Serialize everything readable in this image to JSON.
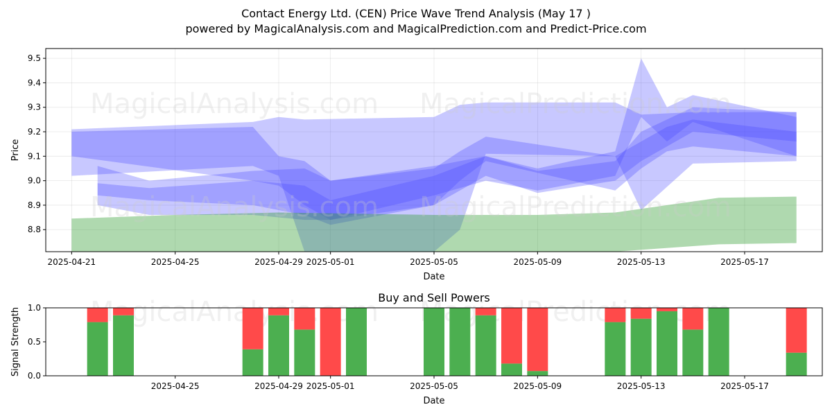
{
  "title": "Contact Energy Ltd. (CEN) Price Wave Trend Analysis (May 17 )",
  "subtitle": "powered by MagicalAnalysis.com and MagicalPrediction.com and Predict-Price.com",
  "watermarks": [
    "MagicalAnalysis.com",
    "MagicalPrediction.com"
  ],
  "chart_data": [
    {
      "type": "area",
      "title": "",
      "xlabel": "Date",
      "ylabel": "Price",
      "x_range": [
        "2025-04-20",
        "2025-05-20"
      ],
      "ylim": [
        8.71,
        9.54
      ],
      "x_ticks": [
        "2025-04-21",
        "2025-04-25",
        "2025-04-29",
        "2025-05-01",
        "2025-05-05",
        "2025-05-09",
        "2025-05-13",
        "2025-05-17"
      ],
      "y_ticks": [
        8.8,
        8.9,
        9.0,
        9.1,
        9.2,
        9.3,
        9.4,
        9.5
      ],
      "grid": true,
      "colors": {
        "wave": "#4a4aff",
        "green_band": "#2e9a2e"
      },
      "series": [
        {
          "kind": "wave-band",
          "x": [
            "2025-04-21",
            "2025-04-28",
            "2025-04-29",
            "2025-04-30",
            "2025-05-05",
            "2025-05-06",
            "2025-05-07",
            "2025-05-12",
            "2025-05-13",
            "2025-05-15",
            "2025-05-19"
          ],
          "upper": [
            9.21,
            9.24,
            9.26,
            9.25,
            9.26,
            9.31,
            9.32,
            9.32,
            9.27,
            9.28,
            9.28
          ],
          "lower": [
            9.02,
            9.06,
            9.02,
            8.71,
            8.71,
            8.8,
            9.11,
            9.1,
            8.88,
            9.07,
            9.08
          ]
        },
        {
          "kind": "wave-band",
          "x": [
            "2025-04-21",
            "2025-04-28",
            "2025-04-29",
            "2025-04-30",
            "2025-05-01",
            "2025-05-05",
            "2025-05-06",
            "2025-05-07",
            "2025-05-12",
            "2025-05-13",
            "2025-05-14",
            "2025-05-15",
            "2025-05-19"
          ],
          "upper": [
            9.2,
            9.22,
            9.1,
            9.08,
            9.0,
            9.05,
            9.12,
            9.18,
            9.1,
            9.16,
            9.22,
            9.25,
            9.2
          ],
          "lower": [
            9.1,
            9.0,
            8.98,
            8.9,
            8.84,
            8.9,
            9.0,
            9.08,
            8.96,
            9.05,
            9.12,
            9.14,
            9.1
          ]
        },
        {
          "kind": "wave-band",
          "x": [
            "2025-04-22",
            "2025-04-24",
            "2025-04-28",
            "2025-04-30",
            "2025-05-01",
            "2025-05-05",
            "2025-05-07",
            "2025-05-09",
            "2025-05-12",
            "2025-05-13",
            "2025-05-15",
            "2025-05-19"
          ],
          "upper": [
            9.06,
            9.0,
            9.04,
            9.05,
            9.0,
            9.06,
            9.1,
            9.04,
            9.08,
            9.2,
            9.3,
            9.28
          ],
          "lower": [
            8.94,
            8.92,
            8.9,
            8.86,
            8.82,
            8.9,
            9.02,
            8.95,
            9.0,
            9.08,
            9.2,
            9.16
          ]
        },
        {
          "kind": "wave-band",
          "x": [
            "2025-04-22",
            "2025-04-24",
            "2025-04-28",
            "2025-04-30",
            "2025-05-01",
            "2025-05-05",
            "2025-05-07",
            "2025-05-09",
            "2025-05-12",
            "2025-05-13",
            "2025-05-14",
            "2025-05-15",
            "2025-05-19"
          ],
          "upper": [
            8.99,
            8.97,
            9.0,
            8.98,
            8.92,
            9.02,
            9.1,
            9.05,
            9.12,
            9.5,
            9.3,
            9.35,
            9.26
          ],
          "lower": [
            8.9,
            8.86,
            8.86,
            8.84,
            8.84,
            8.94,
            9.0,
            8.96,
            9.02,
            9.26,
            9.16,
            9.24,
            9.1
          ]
        },
        {
          "kind": "green-band",
          "x": [
            "2025-04-21",
            "2025-04-25",
            "2025-04-29",
            "2025-05-05",
            "2025-05-09",
            "2025-05-12",
            "2025-05-16",
            "2025-05-19"
          ],
          "upper": [
            8.845,
            8.86,
            8.87,
            8.86,
            8.86,
            8.87,
            8.93,
            8.935
          ],
          "lower": [
            8.71,
            8.71,
            8.71,
            8.71,
            8.71,
            8.71,
            8.74,
            8.745
          ]
        }
      ]
    },
    {
      "type": "bar",
      "title": "Buy and Sell Powers",
      "xlabel": "Date",
      "ylabel": "Signal Strength",
      "ylim": [
        0,
        1.0
      ],
      "y_ticks": [
        "0.0",
        "0.5",
        "1.0"
      ],
      "x_ticks": [
        "2025-04-25",
        "2025-04-29",
        "2025-05-01",
        "2025-05-05",
        "2025-05-09",
        "2025-05-13",
        "2025-05-17"
      ],
      "x_range": [
        "2025-04-20",
        "2025-05-20"
      ],
      "grid": false,
      "colors": {
        "buy": "#4caf50",
        "sell": "#ff4a4a"
      },
      "series": [
        {
          "name": "buy",
          "x": [
            "2025-04-22",
            "2025-04-23",
            "2025-04-28",
            "2025-04-29",
            "2025-04-30",
            "2025-05-01",
            "2025-05-02",
            "2025-05-05",
            "2025-05-06",
            "2025-05-07",
            "2025-05-08",
            "2025-05-09",
            "2025-05-12",
            "2025-05-13",
            "2025-05-14",
            "2025-05-15",
            "2025-05-16",
            "2025-05-19"
          ],
          "values": [
            0.79,
            0.89,
            0.39,
            0.89,
            0.68,
            0.0,
            1.0,
            1.0,
            1.0,
            0.89,
            0.18,
            0.07,
            0.79,
            0.84,
            0.95,
            0.68,
            1.0,
            0.34
          ]
        },
        {
          "name": "sell",
          "x": [
            "2025-04-22",
            "2025-04-23",
            "2025-04-28",
            "2025-04-29",
            "2025-04-30",
            "2025-05-01",
            "2025-05-02",
            "2025-05-05",
            "2025-05-06",
            "2025-05-07",
            "2025-05-08",
            "2025-05-09",
            "2025-05-12",
            "2025-05-13",
            "2025-05-14",
            "2025-05-15",
            "2025-05-16",
            "2025-05-19"
          ],
          "values": [
            0.21,
            0.11,
            0.61,
            0.11,
            0.32,
            1.0,
            0.0,
            0.0,
            0.0,
            0.11,
            0.82,
            0.93,
            0.21,
            0.16,
            0.05,
            0.32,
            0.0,
            0.66
          ]
        }
      ]
    }
  ]
}
